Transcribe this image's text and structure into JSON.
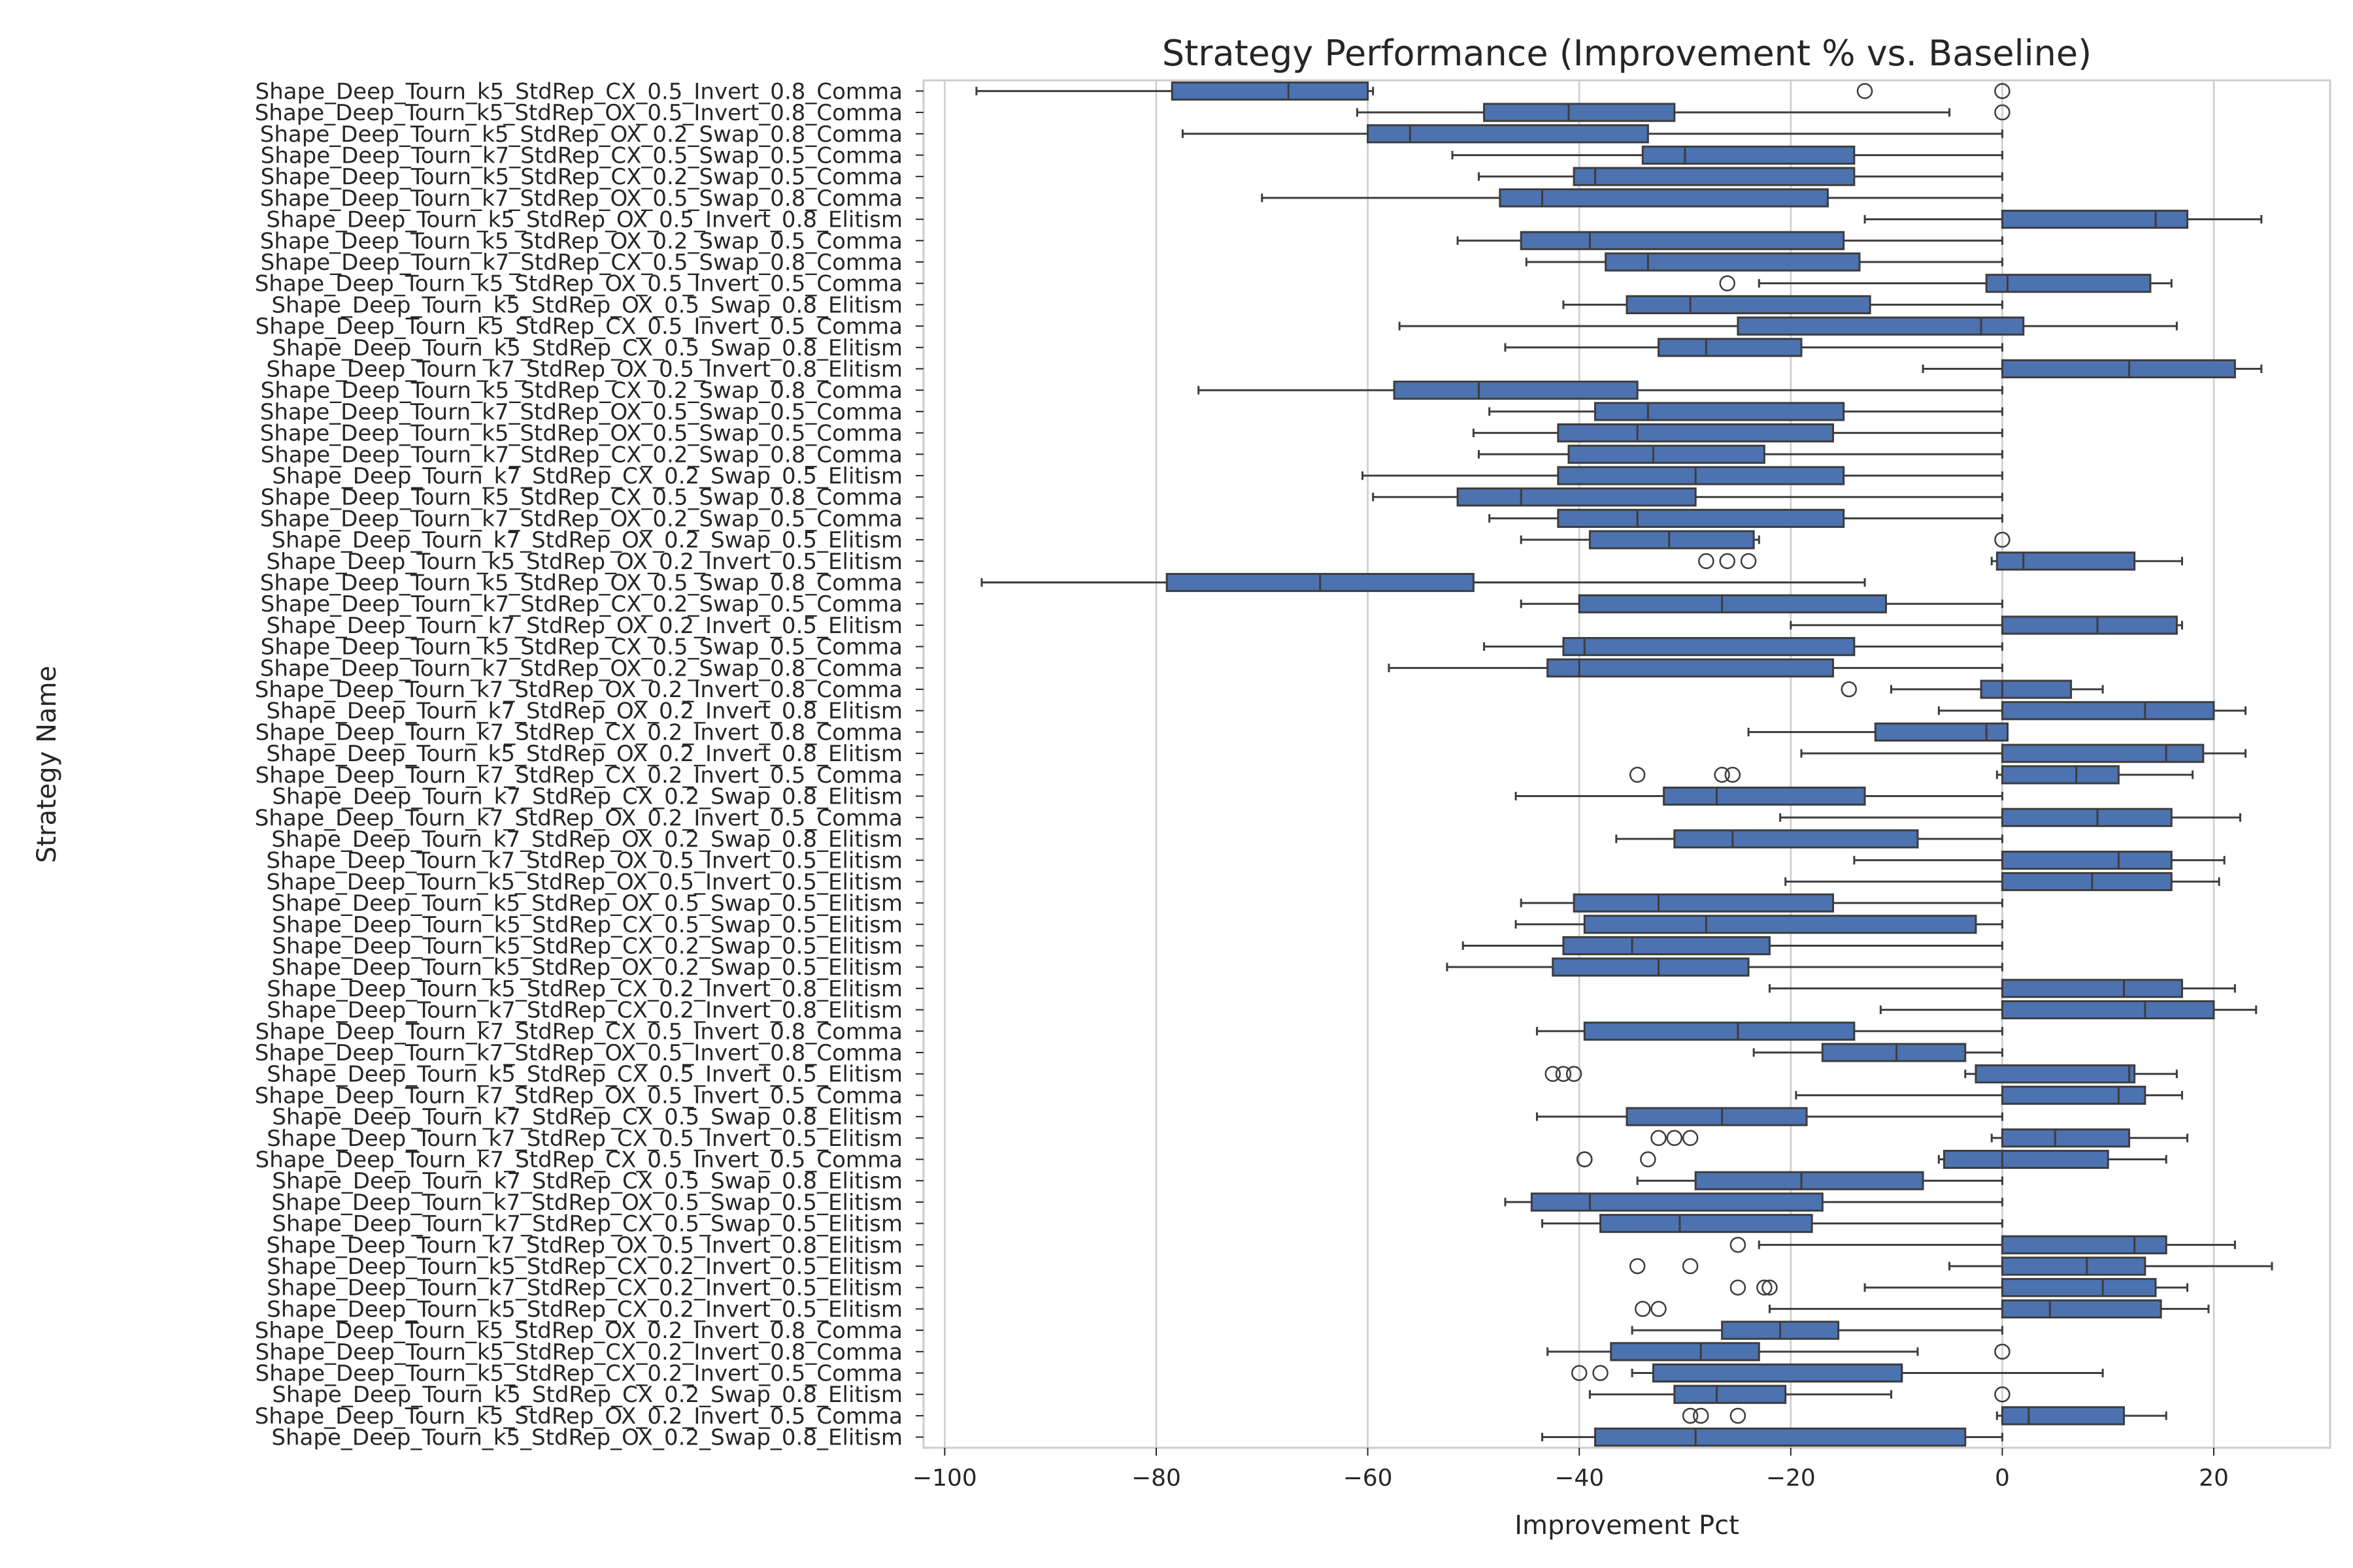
{
  "chart_data": {
    "type": "boxplot",
    "orientation": "horizontal",
    "title": "Strategy Performance (Improvement % vs. Baseline)",
    "xlabel": "Improvement Pct",
    "ylabel": "Strategy Name",
    "xlim": [
      -102,
      31
    ],
    "xticks": [
      -100,
      -80,
      -60,
      -40,
      -20,
      0,
      20
    ],
    "xtick_labels": [
      "−100",
      "−80",
      "−60",
      "−40",
      "−20",
      "0",
      "20"
    ],
    "grid": "vertical",
    "box_color": "#4c72b0",
    "edge_color": "#3d3d3d",
    "categories": [
      "Shape_Deep_Tourn_k5_StdRep_CX_0.5_Invert_0.8_Comma",
      "Shape_Deep_Tourn_k5_StdRep_OX_0.5_Invert_0.8_Comma",
      "Shape_Deep_Tourn_k5_StdRep_OX_0.2_Swap_0.8_Comma",
      "Shape_Deep_Tourn_k7_StdRep_CX_0.5_Swap_0.5_Comma",
      "Shape_Deep_Tourn_k5_StdRep_CX_0.2_Swap_0.5_Comma",
      "Shape_Deep_Tourn_k7_StdRep_OX_0.5_Swap_0.8_Comma",
      "Shape_Deep_Tourn_k5_StdRep_OX_0.5_Invert_0.8_Elitism",
      "Shape_Deep_Tourn_k5_StdRep_OX_0.2_Swap_0.5_Comma",
      "Shape_Deep_Tourn_k7_StdRep_CX_0.5_Swap_0.8_Comma",
      "Shape_Deep_Tourn_k5_StdRep_OX_0.5_Invert_0.5_Comma",
      "Shape_Deep_Tourn_k5_StdRep_OX_0.5_Swap_0.8_Elitism",
      "Shape_Deep_Tourn_k5_StdRep_CX_0.5_Invert_0.5_Comma",
      "Shape_Deep_Tourn_k5_StdRep_CX_0.5_Swap_0.8_Elitism",
      "Shape_Deep_Tourn_k7_StdRep_OX_0.5_Invert_0.8_Elitism",
      "Shape_Deep_Tourn_k5_StdRep_CX_0.2_Swap_0.8_Comma",
      "Shape_Deep_Tourn_k7_StdRep_OX_0.5_Swap_0.5_Comma",
      "Shape_Deep_Tourn_k5_StdRep_OX_0.5_Swap_0.5_Comma",
      "Shape_Deep_Tourn_k7_StdRep_CX_0.2_Swap_0.8_Comma",
      "Shape_Deep_Tourn_k7_StdRep_CX_0.2_Swap_0.5_Elitism",
      "Shape_Deep_Tourn_k5_StdRep_CX_0.5_Swap_0.8_Comma",
      "Shape_Deep_Tourn_k7_StdRep_OX_0.2_Swap_0.5_Comma",
      "Shape_Deep_Tourn_k7_StdRep_OX_0.2_Swap_0.5_Elitism",
      "Shape_Deep_Tourn_k5_StdRep_OX_0.2_Invert_0.5_Elitism",
      "Shape_Deep_Tourn_k5_StdRep_OX_0.5_Swap_0.8_Comma",
      "Shape_Deep_Tourn_k7_StdRep_CX_0.2_Swap_0.5_Comma",
      "Shape_Deep_Tourn_k7_StdRep_OX_0.2_Invert_0.5_Elitism",
      "Shape_Deep_Tourn_k5_StdRep_CX_0.5_Swap_0.5_Comma",
      "Shape_Deep_Tourn_k7_StdRep_OX_0.2_Swap_0.8_Comma",
      "Shape_Deep_Tourn_k7_StdRep_OX_0.2_Invert_0.8_Comma",
      "Shape_Deep_Tourn_k7_StdRep_OX_0.2_Invert_0.8_Elitism",
      "Shape_Deep_Tourn_k7_StdRep_CX_0.2_Invert_0.8_Comma",
      "Shape_Deep_Tourn_k5_StdRep_OX_0.2_Invert_0.8_Elitism",
      "Shape_Deep_Tourn_k7_StdRep_CX_0.2_Invert_0.5_Comma",
      "Shape_Deep_Tourn_k7_StdRep_CX_0.2_Swap_0.8_Elitism",
      "Shape_Deep_Tourn_k7_StdRep_OX_0.2_Invert_0.5_Comma",
      "Shape_Deep_Tourn_k7_StdRep_OX_0.2_Swap_0.8_Elitism",
      "Shape_Deep_Tourn_k7_StdRep_OX_0.5_Invert_0.5_Elitism",
      "Shape_Deep_Tourn_k5_StdRep_OX_0.5_Invert_0.5_Elitism",
      "Shape_Deep_Tourn_k5_StdRep_OX_0.5_Swap_0.5_Elitism",
      "Shape_Deep_Tourn_k5_StdRep_CX_0.5_Swap_0.5_Elitism",
      "Shape_Deep_Tourn_k5_StdRep_CX_0.2_Swap_0.5_Elitism",
      "Shape_Deep_Tourn_k5_StdRep_OX_0.2_Swap_0.5_Elitism",
      "Shape_Deep_Tourn_k5_StdRep_CX_0.2_Invert_0.8_Elitism",
      "Shape_Deep_Tourn_k7_StdRep_CX_0.2_Invert_0.8_Elitism",
      "Shape_Deep_Tourn_k7_StdRep_CX_0.5_Invert_0.8_Comma",
      "Shape_Deep_Tourn_k7_StdRep_OX_0.5_Invert_0.8_Comma",
      "Shape_Deep_Tourn_k5_StdRep_CX_0.5_Invert_0.5_Elitism",
      "Shape_Deep_Tourn_k7_StdRep_OX_0.5_Invert_0.5_Comma",
      "Shape_Deep_Tourn_k7_StdRep_CX_0.5_Swap_0.8_Elitism",
      "Shape_Deep_Tourn_k7_StdRep_CX_0.5_Invert_0.5_Elitism",
      "Shape_Deep_Tourn_k7_StdRep_CX_0.5_Invert_0.5_Comma",
      "Shape_Deep_Tourn_k7_StdRep_CX_0.5_Swap_0.8_Elitism",
      "Shape_Deep_Tourn_k7_StdRep_OX_0.5_Swap_0.5_Elitism",
      "Shape_Deep_Tourn_k7_StdRep_CX_0.5_Swap_0.5_Elitism",
      "Shape_Deep_Tourn_k7_StdRep_OX_0.5_Invert_0.8_Elitism",
      "Shape_Deep_Tourn_k5_StdRep_CX_0.2_Invert_0.5_Elitism",
      "Shape_Deep_Tourn_k7_StdRep_CX_0.2_Invert_0.5_Elitism",
      "Shape_Deep_Tourn_k5_StdRep_CX_0.2_Invert_0.5_Elitism",
      "Shape_Deep_Tourn_k5_StdRep_OX_0.2_Invert_0.8_Comma",
      "Shape_Deep_Tourn_k5_StdRep_CX_0.2_Invert_0.8_Comma",
      "Shape_Deep_Tourn_k5_StdRep_CX_0.2_Invert_0.5_Comma",
      "Shape_Deep_Tourn_k5_StdRep_CX_0.2_Swap_0.8_Elitism",
      "Shape_Deep_Tourn_k5_StdRep_OX_0.2_Invert_0.5_Comma",
      "Shape_Deep_Tourn_k5_StdRep_OX_0.2_Swap_0.8_Elitism"
    ],
    "boxes": [
      {
        "wl": -97,
        "q1": -78.5,
        "med": -67.5,
        "q3": -60,
        "wh": -59.5,
        "out": [
          -13,
          0
        ]
      },
      {
        "wl": -61,
        "q1": -49,
        "med": -41,
        "q3": -31,
        "wh": -5,
        "out": [
          0
        ]
      },
      {
        "wl": -77.5,
        "q1": -60,
        "med": -56,
        "q3": -33.5,
        "wh": 0,
        "out": []
      },
      {
        "wl": -52,
        "q1": -34,
        "med": -30,
        "q3": -14,
        "wh": 0,
        "out": []
      },
      {
        "wl": -49.5,
        "q1": -40.5,
        "med": -38.5,
        "q3": -14,
        "wh": 0,
        "out": []
      },
      {
        "wl": -70,
        "q1": -47.5,
        "med": -43.5,
        "q3": -16.5,
        "wh": 0,
        "out": []
      },
      {
        "wl": -13,
        "q1": 0,
        "med": 14.5,
        "q3": 17.5,
        "wh": 24.5,
        "out": []
      },
      {
        "wl": -51.5,
        "q1": -45.5,
        "med": -39,
        "q3": -15,
        "wh": 0,
        "out": []
      },
      {
        "wl": -45,
        "q1": -37.5,
        "med": -33.5,
        "q3": -13.5,
        "wh": 0,
        "out": []
      },
      {
        "wl": -23,
        "q1": -1.5,
        "med": 0.5,
        "q3": 14,
        "wh": 16,
        "out": [
          -26
        ]
      },
      {
        "wl": -41.5,
        "q1": -35.5,
        "med": -29.5,
        "q3": -12.5,
        "wh": 0,
        "out": []
      },
      {
        "wl": -57,
        "q1": -25,
        "med": -2,
        "q3": 2,
        "wh": 16.5,
        "out": []
      },
      {
        "wl": -47,
        "q1": -32.5,
        "med": -28,
        "q3": -19,
        "wh": 0,
        "out": []
      },
      {
        "wl": -7.5,
        "q1": 0,
        "med": 12,
        "q3": 22,
        "wh": 24.5,
        "out": []
      },
      {
        "wl": -76,
        "q1": -57.5,
        "med": -49.5,
        "q3": -34.5,
        "wh": 0,
        "out": []
      },
      {
        "wl": -48.5,
        "q1": -38.5,
        "med": -33.5,
        "q3": -15,
        "wh": 0,
        "out": []
      },
      {
        "wl": -50,
        "q1": -42,
        "med": -34.5,
        "q3": -16,
        "wh": 0,
        "out": []
      },
      {
        "wl": -49.5,
        "q1": -41,
        "med": -33,
        "q3": -22.5,
        "wh": 0,
        "out": []
      },
      {
        "wl": -60.5,
        "q1": -42,
        "med": -29,
        "q3": -15,
        "wh": 0,
        "out": []
      },
      {
        "wl": -59.5,
        "q1": -51.5,
        "med": -45.5,
        "q3": -29,
        "wh": 0,
        "out": []
      },
      {
        "wl": -48.5,
        "q1": -42,
        "med": -34.5,
        "q3": -15,
        "wh": 0,
        "out": []
      },
      {
        "wl": -45.5,
        "q1": -39,
        "med": -31.5,
        "q3": -23.5,
        "wh": -23,
        "out": [
          0
        ]
      },
      {
        "wl": -1,
        "q1": -0.5,
        "med": 2,
        "q3": 12.5,
        "wh": 17,
        "out": [
          -28,
          -26,
          -24
        ]
      },
      {
        "wl": -96.5,
        "q1": -79,
        "med": -64.5,
        "q3": -50,
        "wh": -13,
        "out": []
      },
      {
        "wl": -45.5,
        "q1": -40,
        "med": -26.5,
        "q3": -11,
        "wh": 0,
        "out": []
      },
      {
        "wl": -20,
        "q1": 0,
        "med": 9,
        "q3": 16.5,
        "wh": 17,
        "out": []
      },
      {
        "wl": -49,
        "q1": -41.5,
        "med": -39.5,
        "q3": -14,
        "wh": 0,
        "out": []
      },
      {
        "wl": -58,
        "q1": -43,
        "med": -40,
        "q3": -16,
        "wh": 0,
        "out": []
      },
      {
        "wl": -10.5,
        "q1": -2,
        "med": 0,
        "q3": 6.5,
        "wh": 9.5,
        "out": [
          -14.5
        ]
      },
      {
        "wl": -6,
        "q1": 0,
        "med": 13.5,
        "q3": 20,
        "wh": 23,
        "out": []
      },
      {
        "wl": -24,
        "q1": -12,
        "med": -1.5,
        "q3": 0.5,
        "wh": 0.5,
        "out": []
      },
      {
        "wl": -19,
        "q1": 0,
        "med": 15.5,
        "q3": 19,
        "wh": 23,
        "out": []
      },
      {
        "wl": -0.5,
        "q1": 0,
        "med": 7,
        "q3": 11,
        "wh": 18,
        "out": [
          -34.5,
          -26.5,
          -25.5
        ]
      },
      {
        "wl": -46,
        "q1": -32,
        "med": -27,
        "q3": -13,
        "wh": 0,
        "out": []
      },
      {
        "wl": -21,
        "q1": 0,
        "med": 9,
        "q3": 16,
        "wh": 22.5,
        "out": []
      },
      {
        "wl": -36.5,
        "q1": -31,
        "med": -25.5,
        "q3": -8,
        "wh": 0,
        "out": []
      },
      {
        "wl": -14,
        "q1": 0,
        "med": 11,
        "q3": 16,
        "wh": 21,
        "out": []
      },
      {
        "wl": -20.5,
        "q1": 0,
        "med": 8.5,
        "q3": 16,
        "wh": 20.5,
        "out": []
      },
      {
        "wl": -45.5,
        "q1": -40.5,
        "med": -32.5,
        "q3": -16,
        "wh": 0,
        "out": []
      },
      {
        "wl": -46,
        "q1": -39.5,
        "med": -28,
        "q3": -2.5,
        "wh": 0,
        "out": []
      },
      {
        "wl": -51,
        "q1": -41.5,
        "med": -35,
        "q3": -22,
        "wh": 0,
        "out": []
      },
      {
        "wl": -52.5,
        "q1": -42.5,
        "med": -32.5,
        "q3": -24,
        "wh": 0,
        "out": []
      },
      {
        "wl": -22,
        "q1": 0,
        "med": 11.5,
        "q3": 17,
        "wh": 22,
        "out": []
      },
      {
        "wl": -11.5,
        "q1": 0,
        "med": 13.5,
        "q3": 20,
        "wh": 24,
        "out": []
      },
      {
        "wl": -44,
        "q1": -39.5,
        "med": -25,
        "q3": -14,
        "wh": 0,
        "out": []
      },
      {
        "wl": -23.5,
        "q1": -17,
        "med": -10,
        "q3": -3.5,
        "wh": 0,
        "out": []
      },
      {
        "wl": -3.5,
        "q1": -2.5,
        "med": 12,
        "q3": 12.5,
        "wh": 16.5,
        "out": [
          -42.5,
          -41.5,
          -40.5
        ]
      },
      {
        "wl": -19.5,
        "q1": 0,
        "med": 11,
        "q3": 13.5,
        "wh": 17,
        "out": []
      },
      {
        "wl": -44,
        "q1": -35.5,
        "med": -26.5,
        "q3": -18.5,
        "wh": 0,
        "out": []
      },
      {
        "wl": -1,
        "q1": 0,
        "med": 5,
        "q3": 12,
        "wh": 17.5,
        "out": [
          -32.5,
          -31,
          -29.5
        ]
      },
      {
        "wl": -6,
        "q1": -5.5,
        "med": 0,
        "q3": 10,
        "wh": 15.5,
        "out": [
          -39.5,
          -39.5,
          -33.5
        ]
      },
      {
        "wl": -34.5,
        "q1": -29,
        "med": -19,
        "q3": -7.5,
        "wh": 0,
        "out": []
      },
      {
        "wl": -47,
        "q1": -44.5,
        "med": -39,
        "q3": -17,
        "wh": 0,
        "out": []
      },
      {
        "wl": -43.5,
        "q1": -38,
        "med": -30.5,
        "q3": -18,
        "wh": 0,
        "out": []
      },
      {
        "wl": -23,
        "q1": 0,
        "med": 12.5,
        "q3": 15.5,
        "wh": 22,
        "out": [
          -25
        ]
      },
      {
        "wl": -5,
        "q1": 0,
        "med": 8,
        "q3": 13.5,
        "wh": 25.5,
        "out": [
          -34.5,
          -29.5
        ]
      },
      {
        "wl": -13,
        "q1": 0,
        "med": 9.5,
        "q3": 14.5,
        "wh": 17.5,
        "out": [
          -25,
          -22.5,
          -22
        ]
      },
      {
        "wl": -22,
        "q1": 0,
        "med": 4.5,
        "q3": 15,
        "wh": 19.5,
        "out": [
          -34,
          -32.5
        ]
      },
      {
        "wl": -35,
        "q1": -26.5,
        "med": -21,
        "q3": -15.5,
        "wh": 0,
        "out": []
      },
      {
        "wl": -43,
        "q1": -37,
        "med": -28.5,
        "q3": -23,
        "wh": -8,
        "out": [
          0
        ]
      },
      {
        "wl": -35,
        "q1": -33,
        "med": -9.5,
        "q3": -9.5,
        "wh": 9.5,
        "out": [
          -40,
          -38
        ]
      },
      {
        "wl": -39,
        "q1": -31,
        "med": -27,
        "q3": -20.5,
        "wh": -10.5,
        "out": [
          0
        ]
      },
      {
        "wl": -0.5,
        "q1": 0,
        "med": 2.5,
        "q3": 11.5,
        "wh": 15.5,
        "out": [
          -29.5,
          -28.5,
          -25
        ]
      },
      {
        "wl": -43.5,
        "q1": -38.5,
        "med": -29,
        "q3": -3.5,
        "wh": 0,
        "out": []
      }
    ]
  }
}
